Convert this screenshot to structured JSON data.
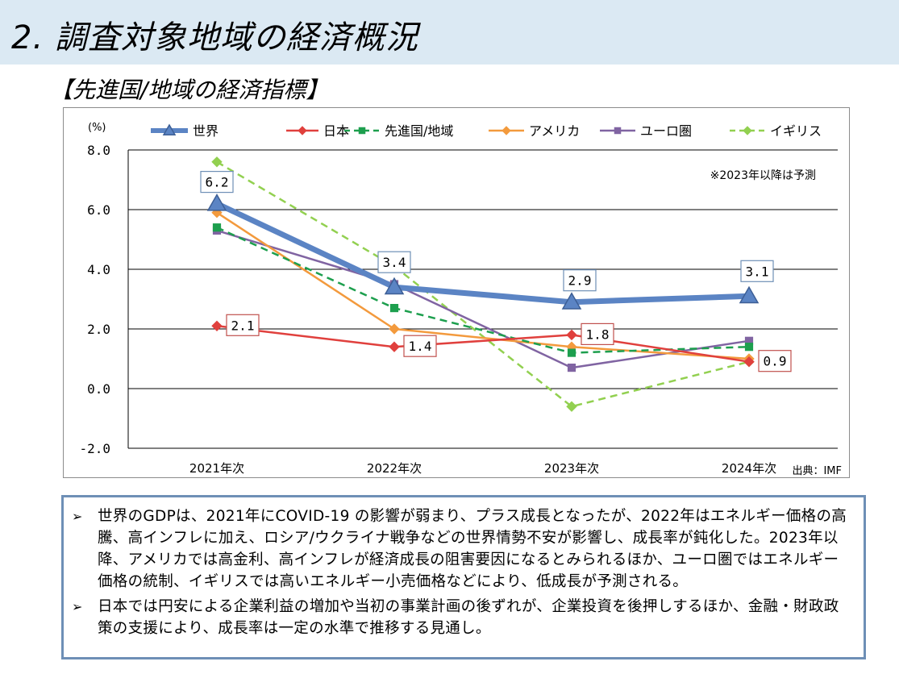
{
  "header": {
    "title": "2. 調査対象地域の経済概況",
    "section_title": "【先進国/地域の経済指標】"
  },
  "chart_data": {
    "type": "line",
    "unit_label": "(%)",
    "categories": [
      "2021年次",
      "2022年次",
      "2023年次",
      "2024年次"
    ],
    "ylim": [
      -2.0,
      8.0
    ],
    "yticks": [
      "8.0",
      "6.0",
      "4.0",
      "2.0",
      "0.0",
      "-2.0"
    ],
    "ytick_values": [
      8,
      6,
      4,
      2,
      0,
      -2
    ],
    "grid": true,
    "legend_position": "top",
    "annotation": "※2023年以降は予測",
    "source": "出典：IMF",
    "series": [
      {
        "name": "世界",
        "values": [
          6.2,
          3.4,
          2.9,
          3.1
        ],
        "color": "#5b84c4",
        "marker": "triangle",
        "dash": "solid",
        "width": 7,
        "labels": [
          "6.2",
          "3.4",
          "2.9",
          "3.1"
        ],
        "label_color": "#6e8fb6"
      },
      {
        "name": "日本",
        "values": [
          2.1,
          1.4,
          1.8,
          0.9
        ],
        "color": "#e0403d",
        "marker": "diamond",
        "dash": "solid",
        "width": 2.5,
        "labels": [
          "2.1",
          "1.4",
          "1.8",
          "0.9"
        ],
        "label_color": "#c0504d"
      },
      {
        "name": "先進国/地域",
        "values": [
          5.4,
          2.7,
          1.2,
          1.4
        ],
        "color": "#1d9f4e",
        "marker": "square",
        "dash": "dashed",
        "width": 2.5
      },
      {
        "name": "アメリカ",
        "values": [
          5.9,
          2.0,
          1.4,
          1.0
        ],
        "color": "#f39a3d",
        "marker": "diamond",
        "dash": "solid",
        "width": 2.5
      },
      {
        "name": "ユーロ圏",
        "values": [
          5.3,
          3.5,
          0.7,
          1.6
        ],
        "color": "#8064a2",
        "marker": "square",
        "dash": "solid",
        "width": 2.5
      },
      {
        "name": "イギリス",
        "values": [
          7.6,
          4.1,
          -0.6,
          0.9
        ],
        "color": "#92d050",
        "marker": "diamond",
        "dash": "dashed",
        "width": 2.5
      }
    ]
  },
  "notes": {
    "bullet": "➢",
    "items": [
      "世界のGDPは、2021年にCOVID-19 の影響が弱まり、プラス成長となったが、2022年はエネルギー価格の高騰、高インフレに加え、ロシア/ウクライナ戦争などの世界情勢不安が影響し、成長率が鈍化した。2023年以降、アメリカでは高金利、高インフレが経済成長の阻害要因になるとみられるほか、ユーロ圏ではエネルギー価格の統制、イギリスでは高いエネルギー小売価格などにより、低成長が予測される。",
      "日本では円安による企業利益の増加や当初の事業計画の後ずれが、企業投資を後押しするほか、金融・財政政策の支援により、成長率は一定の水準で推移する見通し。"
    ]
  }
}
